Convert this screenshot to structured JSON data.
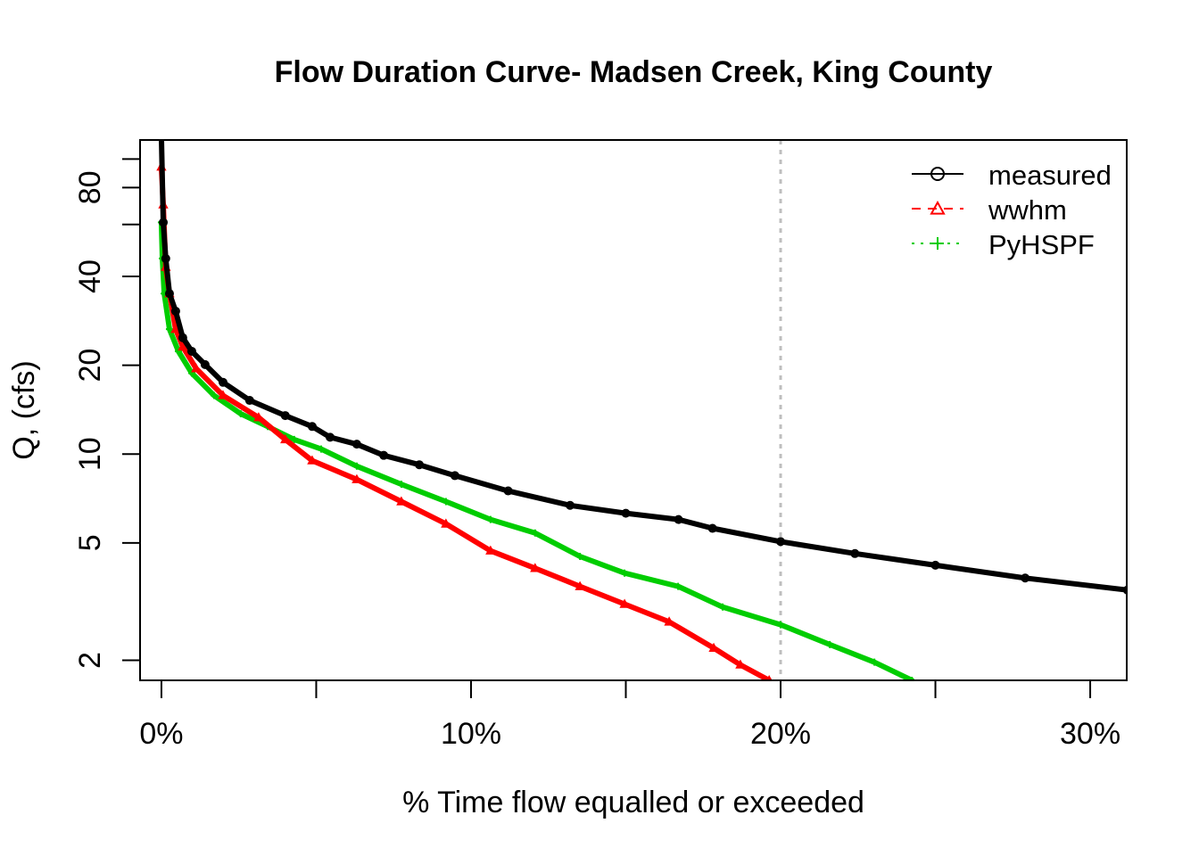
{
  "chart_data": {
    "type": "line",
    "title": "Flow Duration Curve- Madsen Creek, King County",
    "xlabel": "% Time flow equalled or exceeded",
    "ylabel": "Q, (cfs)",
    "x_scale": "linear",
    "y_scale": "log",
    "xlim": [
      -0.69,
      31.18
    ],
    "ylim": [
      1.71,
      116
    ],
    "x_ticks": [
      {
        "value": 0,
        "label": "0%"
      },
      {
        "value": 5,
        "label": ""
      },
      {
        "value": 10,
        "label": "10%"
      },
      {
        "value": 15,
        "label": ""
      },
      {
        "value": 20,
        "label": "20%"
      },
      {
        "value": 25,
        "label": ""
      },
      {
        "value": 30,
        "label": "30%"
      }
    ],
    "y_ticks": [
      {
        "value": 2,
        "label": "2"
      },
      {
        "value": 5,
        "label": "5"
      },
      {
        "value": 10,
        "label": "10"
      },
      {
        "value": 20,
        "label": "20"
      },
      {
        "value": 40,
        "label": "40"
      },
      {
        "value": 60,
        "label": ""
      },
      {
        "value": 80,
        "label": "80"
      },
      {
        "value": 100,
        "label": ""
      }
    ],
    "grid": false,
    "reference_line": {
      "x": 20,
      "color": "#bebebe",
      "style": "dotted"
    },
    "legend_position": "top-right",
    "series": [
      {
        "name": "measured",
        "color": "#000000",
        "marker": "circle",
        "line_style": "solid",
        "x": [
          0,
          0.06,
          0.14,
          0.26,
          0.46,
          0.69,
          0.98,
          1.41,
          1.99,
          2.85,
          4.0,
          4.87,
          5.45,
          6.31,
          7.18,
          8.33,
          9.48,
          11.2,
          13.2,
          15.0,
          16.7,
          17.8,
          20.0,
          22.4,
          25.0,
          27.9,
          31.2
        ],
        "y": [
          120,
          61,
          46,
          35,
          30.5,
          24.8,
          22.3,
          20.1,
          17.5,
          15.2,
          13.5,
          12.4,
          11.4,
          10.8,
          9.9,
          9.2,
          8.45,
          7.5,
          6.7,
          6.3,
          6.0,
          5.6,
          5.05,
          4.6,
          4.2,
          3.8,
          3.46
        ]
      },
      {
        "name": "wwhm",
        "color": "#ff0000",
        "marker": "triangle",
        "line_style": "dashed",
        "x": [
          0,
          0.06,
          0.14,
          0.26,
          0.46,
          0.69,
          1.12,
          1.99,
          3.14,
          4.0,
          4.87,
          6.31,
          7.75,
          9.19,
          10.63,
          12.07,
          13.52,
          14.96,
          16.4,
          17.84,
          18.7,
          19.63
        ],
        "y": [
          94,
          70,
          43,
          35,
          26.5,
          23.1,
          19.5,
          15.8,
          13.3,
          11.2,
          9.5,
          8.2,
          6.9,
          5.8,
          4.7,
          4.1,
          3.56,
          3.1,
          2.7,
          2.2,
          1.93,
          1.71
        ]
      },
      {
        "name": "PyHSPF",
        "color": "#00cd00",
        "marker": "plus",
        "line_style": "dotted",
        "x": [
          0,
          0.03,
          0.09,
          0.26,
          0.55,
          0.98,
          1.7,
          2.56,
          3.43,
          4.29,
          5.16,
          6.31,
          7.75,
          9.19,
          10.63,
          12.07,
          13.52,
          14.96,
          16.69,
          18.13,
          20.0,
          21.59,
          23.03,
          24.24
        ],
        "y": [
          61,
          46,
          35,
          26.5,
          22.3,
          18.8,
          15.8,
          13.7,
          12.4,
          11.2,
          10.4,
          9.1,
          7.9,
          6.9,
          6.0,
          5.4,
          4.5,
          3.95,
          3.56,
          3.03,
          2.64,
          2.26,
          1.97,
          1.71
        ]
      }
    ]
  }
}
